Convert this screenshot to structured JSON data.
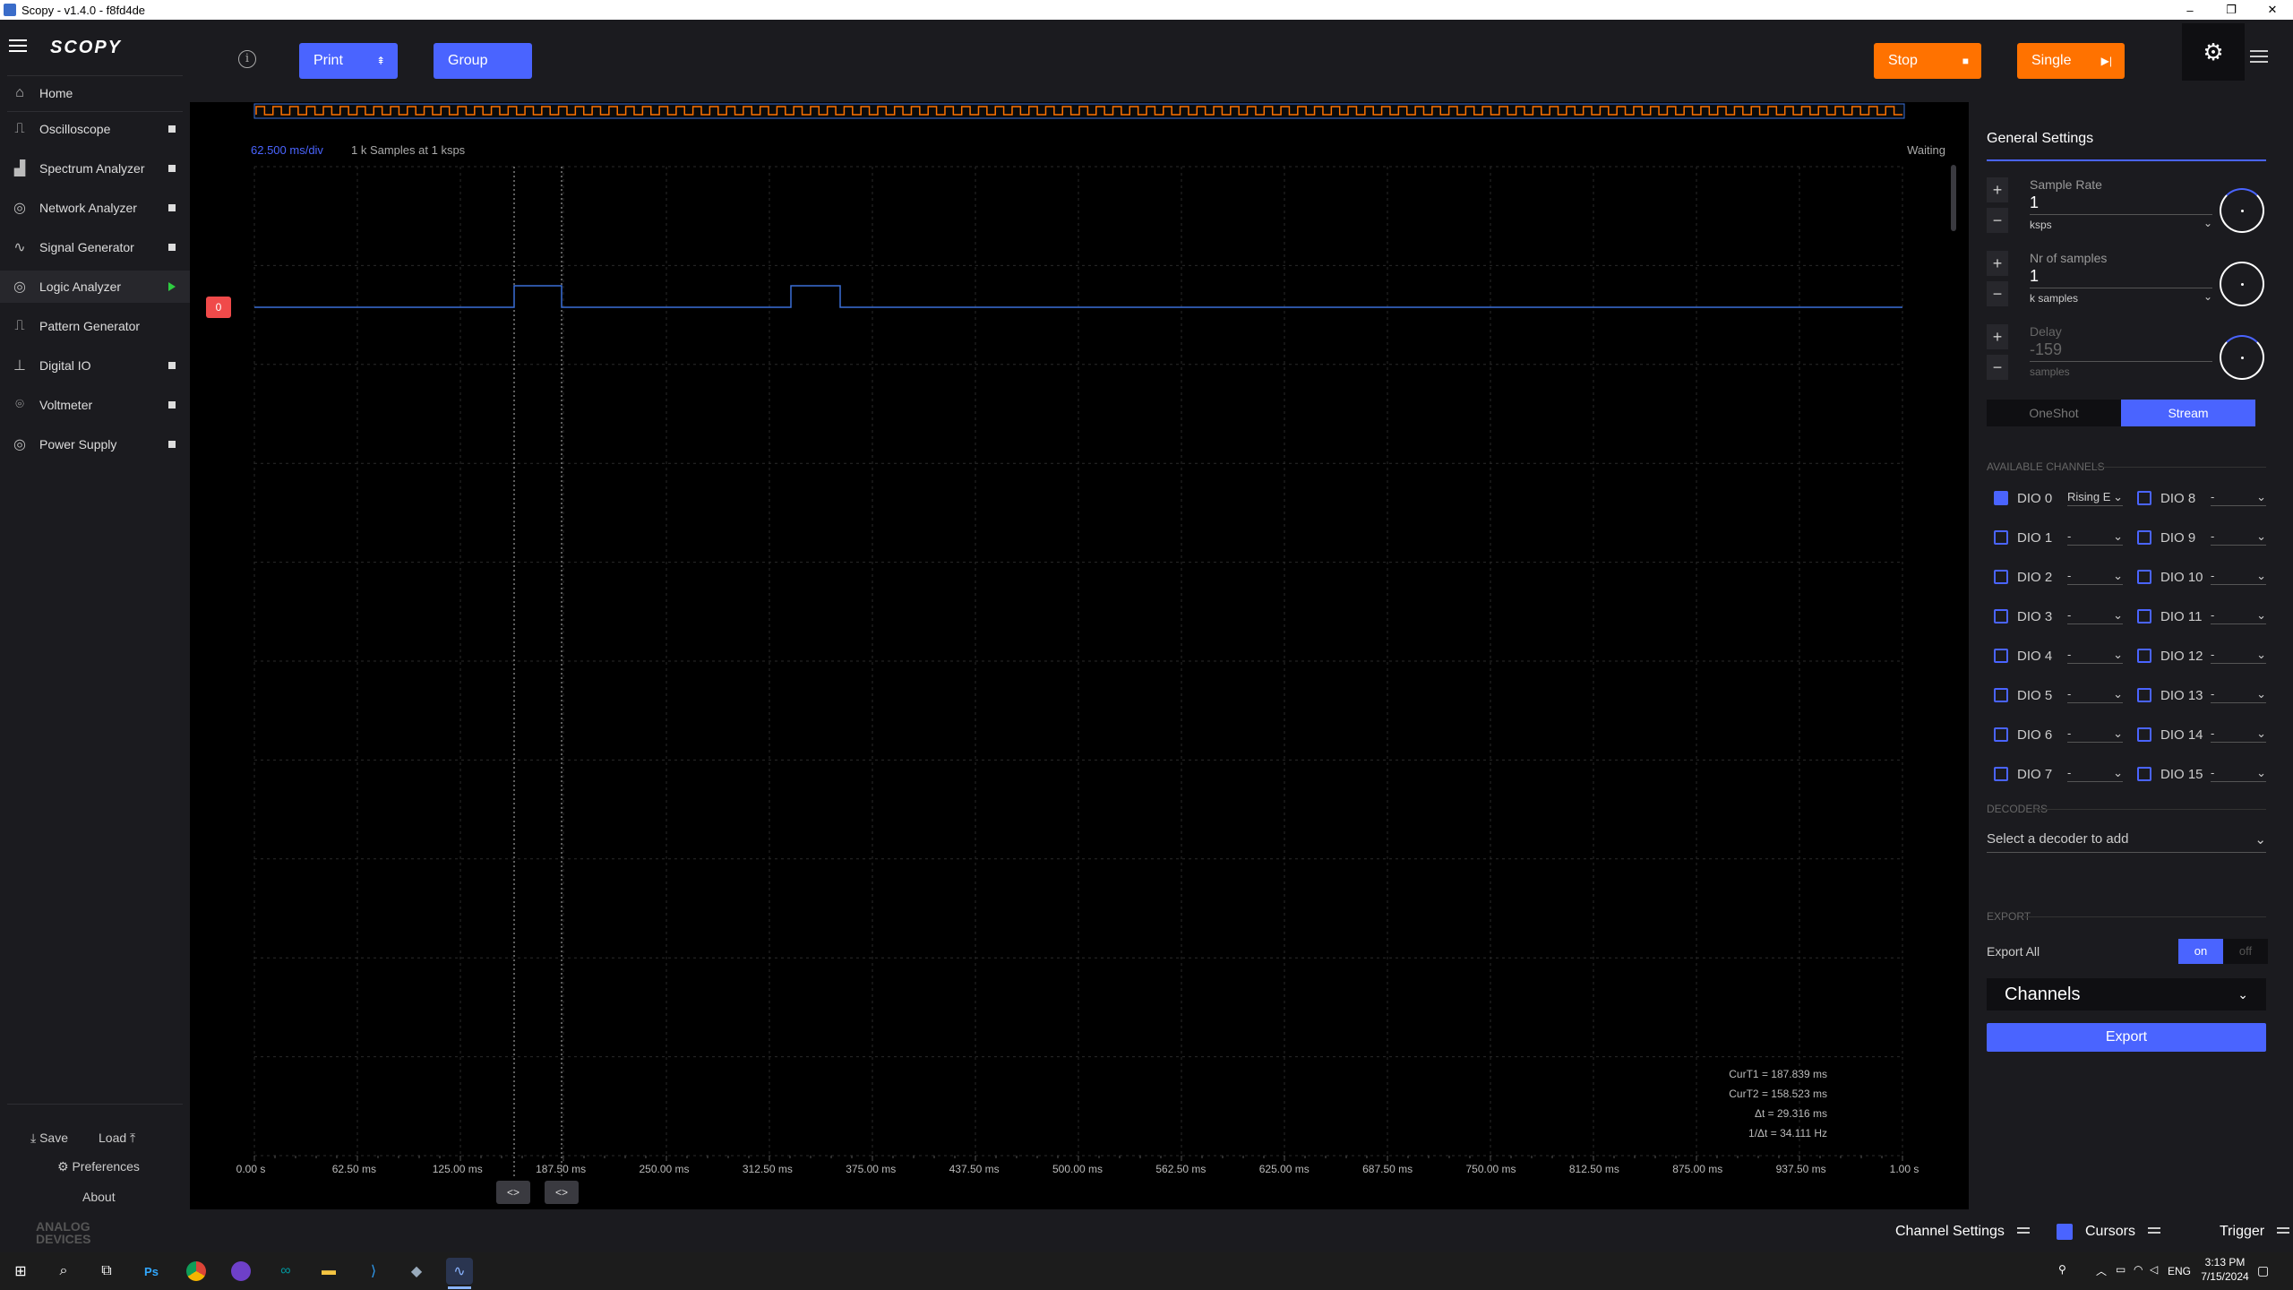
{
  "window": {
    "title": "Scopy - v1.4.0 - f8fd4de",
    "minimize": "–",
    "maximize": "❐",
    "close": "✕"
  },
  "sidebar": {
    "brand": "SCOPY",
    "home": "Home",
    "items": [
      {
        "label": "Oscilloscope",
        "icon": "oscilloscope-icon",
        "status": "stopped"
      },
      {
        "label": "Spectrum Analyzer",
        "icon": "spectrum-icon",
        "status": "stopped"
      },
      {
        "label": "Network Analyzer",
        "icon": "network-icon",
        "status": "stopped"
      },
      {
        "label": "Signal Generator",
        "icon": "signal-generator-icon",
        "status": "stopped"
      },
      {
        "label": "Logic Analyzer",
        "icon": "logic-analyzer-icon",
        "status": "running"
      },
      {
        "label": "Pattern Generator",
        "icon": "pattern-generator-icon",
        "status": "none"
      },
      {
        "label": "Digital IO",
        "icon": "digital-io-icon",
        "status": "stopped"
      },
      {
        "label": "Voltmeter",
        "icon": "voltmeter-icon",
        "status": "stopped"
      },
      {
        "label": "Power Supply",
        "icon": "power-supply-icon",
        "status": "stopped"
      }
    ],
    "save": "Save",
    "load": "Load",
    "preferences": "Preferences",
    "about": "About",
    "logo_line1": "ANALOG",
    "logo_line2": "DEVICES"
  },
  "toolbar": {
    "info": "i",
    "print": "Print",
    "group": "Group",
    "stop": "Stop",
    "single": "Single"
  },
  "plot": {
    "time_per_div": "62.500 ms/div",
    "samples_info": "1 k Samples at 1 ksps",
    "status": "Waiting",
    "channel_marker": "0",
    "cursor_readout": [
      "CurT1 = 187.839 ms",
      "CurT2 = 158.523 ms",
      "Δt = 29.316 ms",
      "1/Δt = 34.111 Hz"
    ],
    "cursor_handle": "<>",
    "x_ticks": [
      "0.00 s",
      "62.50 ms",
      "125.00 ms",
      "187.50 ms",
      "250.00 ms",
      "312.50 ms",
      "375.00 ms",
      "437.50 ms",
      "500.00 ms",
      "562.50 ms",
      "625.00 ms",
      "687.50 ms",
      "750.00 ms",
      "812.50 ms",
      "875.00 ms",
      "937.50 ms",
      "1.00 s"
    ]
  },
  "settings": {
    "title": "General Settings",
    "sample_rate": {
      "label": "Sample Rate",
      "value": "1",
      "unit": "ksps"
    },
    "nr_samples": {
      "label": "Nr of samples",
      "value": "1",
      "unit": "k samples"
    },
    "delay": {
      "label": "Delay",
      "value": "-159",
      "unit": "samples"
    },
    "mode_oneshot": "OneShot",
    "mode_stream": "Stream",
    "available_channels": "AVAILABLE CHANNELS",
    "channels_left": [
      {
        "label": "DIO 0",
        "trigger": "Rising E",
        "checked": true
      },
      {
        "label": "DIO 1",
        "trigger": "-",
        "checked": false
      },
      {
        "label": "DIO 2",
        "trigger": "-",
        "checked": false
      },
      {
        "label": "DIO 3",
        "trigger": "-",
        "checked": false
      },
      {
        "label": "DIO 4",
        "trigger": "-",
        "checked": false
      },
      {
        "label": "DIO 5",
        "trigger": "-",
        "checked": false
      },
      {
        "label": "DIO 6",
        "trigger": "-",
        "checked": false
      },
      {
        "label": "DIO 7",
        "trigger": "-",
        "checked": false
      }
    ],
    "channels_right": [
      {
        "label": "DIO 8",
        "trigger": "-",
        "checked": false
      },
      {
        "label": "DIO 9",
        "trigger": "-",
        "checked": false
      },
      {
        "label": "DIO 10",
        "trigger": "-",
        "checked": false
      },
      {
        "label": "DIO 11",
        "trigger": "-",
        "checked": false
      },
      {
        "label": "DIO 12",
        "trigger": "-",
        "checked": false
      },
      {
        "label": "DIO 13",
        "trigger": "-",
        "checked": false
      },
      {
        "label": "DIO 14",
        "trigger": "-",
        "checked": false
      },
      {
        "label": "DIO 15",
        "trigger": "-",
        "checked": false
      }
    ],
    "decoders": "DECODERS",
    "decoder_placeholder": "Select a decoder to add",
    "export": "EXPORT",
    "export_all": "Export All",
    "on": "on",
    "off": "off",
    "channels_select": "Channels",
    "export_button": "Export"
  },
  "bottombar": {
    "channel_settings": "Channel Settings",
    "cursors": "Cursors",
    "trigger": "Trigger"
  },
  "taskbar": {
    "time": "3:13 PM",
    "date": "7/15/2024",
    "lang": "ENG"
  },
  "colors": {
    "accent": "#4a64ff",
    "orange": "#ff7200",
    "signal": "#3a6fd8",
    "trace_preview": "#ff7200"
  }
}
